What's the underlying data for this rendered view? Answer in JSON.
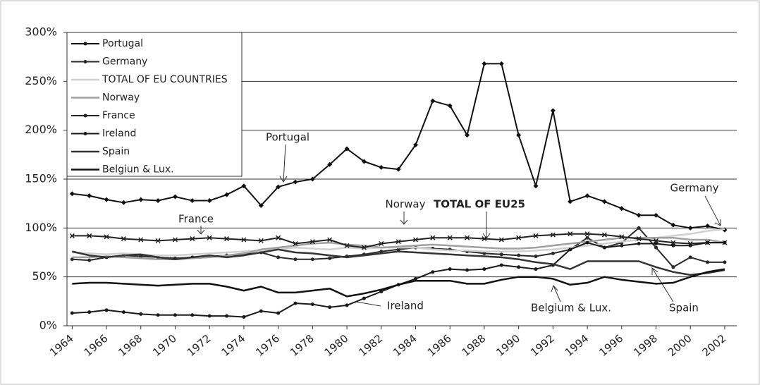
{
  "chart_data": {
    "type": "line",
    "x": [
      1964,
      1965,
      1966,
      1967,
      1968,
      1969,
      1970,
      1971,
      1972,
      1973,
      1974,
      1975,
      1976,
      1977,
      1978,
      1979,
      1980,
      1981,
      1982,
      1983,
      1984,
      1985,
      1986,
      1987,
      1988,
      1989,
      1990,
      1991,
      1992,
      1993,
      1994,
      1995,
      1996,
      1997,
      1998,
      1999,
      2000,
      2001,
      2002
    ],
    "xlim": [
      1963.7,
      2002.7
    ],
    "xticks": [
      1964,
      1966,
      1968,
      1970,
      1972,
      1974,
      1976,
      1978,
      1980,
      1982,
      1984,
      1986,
      1988,
      1990,
      1992,
      1994,
      1996,
      1998,
      2000,
      2002
    ],
    "ylim": [
      0,
      300
    ],
    "yticks": [
      {
        "value": 0,
        "label": "0%"
      },
      {
        "value": 50,
        "label": "50%"
      },
      {
        "value": 100,
        "label": "100%"
      },
      {
        "value": 150,
        "label": "150%"
      },
      {
        "value": 200,
        "label": "200%"
      },
      {
        "value": 250,
        "label": "250%"
      },
      {
        "value": 300,
        "label": "300%"
      }
    ],
    "grid": true,
    "legend": "upper left",
    "series": [
      {
        "name": "Portugal",
        "color": "#111111",
        "marker": "diamond",
        "values": [
          135,
          133,
          129,
          126,
          129,
          128,
          132,
          128,
          128,
          134,
          143,
          123,
          142,
          147,
          150,
          165,
          181,
          168,
          162,
          160,
          185,
          230,
          225,
          195,
          268,
          268,
          195,
          143,
          220,
          127,
          133,
          127,
          120,
          113,
          113,
          103,
          100,
          102,
          98
        ]
      },
      {
        "name": "Germany",
        "color": "#2a2a2a",
        "marker": "circle",
        "values": [
          68,
          67,
          70,
          72,
          71,
          70,
          69,
          70,
          71,
          72,
          73,
          75,
          70,
          68,
          68,
          69,
          71,
          73,
          76,
          78,
          80,
          79,
          78,
          76,
          74,
          73,
          72,
          71,
          74,
          78,
          90,
          80,
          85,
          100,
          80,
          60,
          70,
          65,
          65
        ]
      },
      {
        "name": "TOTAL OF EU COUNTRIES",
        "color": "#d0d0d0",
        "marker": "none",
        "values": [
          75,
          74,
          73,
          74,
          73,
          72,
          72,
          73,
          74,
          75,
          76,
          77,
          78,
          80,
          79,
          78,
          80,
          79,
          80,
          80,
          80,
          78,
          77,
          77,
          76,
          76,
          76,
          77,
          78,
          80,
          82,
          84,
          86,
          88,
          90,
          92,
          94,
          97,
          99
        ]
      },
      {
        "name": "Norway",
        "color": "#a0a0a0",
        "marker": "none",
        "values": [
          70,
          70,
          71,
          70,
          69,
          68,
          68,
          69,
          70,
          72,
          74,
          78,
          80,
          82,
          84,
          85,
          83,
          82,
          80,
          81,
          82,
          83,
          82,
          81,
          80,
          79,
          79,
          80,
          82,
          84,
          86,
          88,
          90,
          90,
          90,
          90,
          88,
          88,
          85
        ]
      },
      {
        "name": "France",
        "color": "#222222",
        "marker": "x",
        "values": [
          92,
          92,
          91,
          89,
          88,
          87,
          88,
          89,
          90,
          89,
          88,
          87,
          90,
          84,
          86,
          88,
          82,
          80,
          84,
          86,
          88,
          90,
          90,
          90,
          89,
          88,
          90,
          92,
          93,
          94,
          94,
          93,
          91,
          89,
          87,
          85,
          84,
          85,
          85
        ]
      },
      {
        "name": "Ireland",
        "color": "#1a1a1a",
        "marker": "circle",
        "values": [
          13,
          14,
          16,
          14,
          12,
          11,
          11,
          11,
          10,
          10,
          9,
          15,
          13,
          23,
          22,
          19,
          21,
          28,
          35,
          42,
          48,
          55,
          58,
          57,
          58,
          62,
          60,
          58,
          62,
          78,
          85,
          80,
          82,
          84,
          84,
          82,
          82,
          85,
          85
        ]
      },
      {
        "name": "Spain",
        "color": "#333333",
        "marker": "none",
        "values": [
          76,
          72,
          70,
          72,
          73,
          70,
          68,
          70,
          72,
          70,
          72,
          75,
          78,
          75,
          74,
          72,
          70,
          72,
          74,
          76,
          75,
          74,
          73,
          72,
          71,
          70,
          68,
          65,
          63,
          58,
          66,
          66,
          66,
          66,
          60,
          55,
          52,
          54,
          57
        ]
      },
      {
        "name": "Belgiun & Lux.",
        "color": "#111111",
        "marker": "none",
        "values": [
          43,
          44,
          44,
          43,
          42,
          41,
          42,
          43,
          43,
          40,
          36,
          40,
          34,
          34,
          36,
          38,
          30,
          33,
          37,
          42,
          46,
          46,
          46,
          43,
          43,
          47,
          50,
          50,
          48,
          42,
          44,
          50,
          47,
          45,
          43,
          44,
          50,
          55,
          58
        ]
      }
    ],
    "annotations": [
      "Portugal",
      "France",
      "Norway",
      "TOTAL OF EU25",
      "Germany",
      "Ireland",
      "Belgium & Lux.",
      "Spain"
    ]
  }
}
